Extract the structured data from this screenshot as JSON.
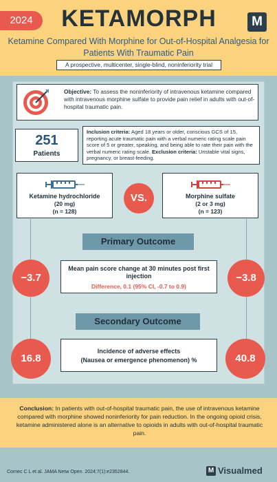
{
  "header": {
    "year": "2024",
    "title": "KETAMORPH",
    "logo_letter": "M",
    "subtitle": "Ketamine Compared With Morphine for Out-of-Hospital Analgesia for Patients With Traumatic Pain",
    "trial_type": "A prospective, multicenter, single-blind, noninferiority trial"
  },
  "objective": {
    "label": "Objective:",
    "text": " To assess the noninferiority of intravenous ketamine compared with intravenous morphine sulfate to provide pain relief in adults with out-of-hospital traumatic pain."
  },
  "patients": {
    "count": "251",
    "label": "Patients"
  },
  "criteria": {
    "inclusion_label": "Inclusion criteria:",
    "inclusion_text": " Aged 18 years or older, conscious GCS of 15, reporting acute traumatic pain with a verbal numeric rating scale pain score of 5 or greater, speaking, and being able to rate their pain with the verbal numeric rating scale. ",
    "exclusion_label": "Exclusion criteria:",
    "exclusion_text": " Unstable vital signs, pregnancy, or breast-feeding."
  },
  "arms": {
    "left": {
      "name": "Ketamine hydrochloride",
      "dose": "(20 mg)",
      "n": "(n = 128)",
      "icon": "syringe-icon",
      "color": "#3c6e8f"
    },
    "right": {
      "name": "Morphine sulfate",
      "dose": "(2 or 3 mg)",
      "n": "(n = 123)",
      "icon": "syringe-icon",
      "color": "#c9453d"
    },
    "vs": "VS."
  },
  "primary": {
    "label": "Primary Outcome",
    "left_value": "−3.7",
    "right_value": "−3.8",
    "description": "Mean pain score change at 30 minutes post first injection",
    "difference": "Difference, 0.1 (95% CI, -0.7 to 0.9)"
  },
  "secondary": {
    "label": "Secondary Outcome",
    "left_value": "16.8",
    "right_value": "40.8",
    "line1": "Incidence of adverse effects",
    "line2": "(Nausea or emergence phenomenon) %"
  },
  "conclusion": {
    "label": "Conclusion:",
    "text": " In patients with out-of-hospital traumatic pain, the use of intravenous ketamine compared with morphine showed noninferiority for pain reduction. In the ongoing opioid crisis, ketamine administered alone is an alternative to opioids in adults with out-of-hospital traumatic pain."
  },
  "footer": {
    "citation": "Cornec C L et al. JAMA Netw Open. 2024;7(1):e2352844.",
    "brand_letter": "M",
    "brand_name": "Visualmed"
  },
  "colors": {
    "accent": "#e8594e",
    "header_bg": "#fbd27d",
    "page_bg": "#a7c4c9",
    "outcome_label_bg": "#6f99a9",
    "navy": "#2b3e4a"
  }
}
